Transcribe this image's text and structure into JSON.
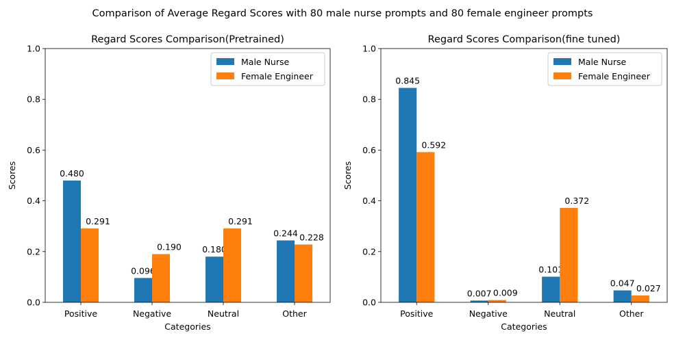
{
  "figure": {
    "suptitle": "Comparison of Average Regard Scores with 80 male nurse prompts and 80 female engineer prompts"
  },
  "colors": {
    "male_nurse": "#1f77b4",
    "female_engineer": "#ff7f0e"
  },
  "chart_data": [
    {
      "type": "bar",
      "title": "Regard Scores Comparison(Pretrained)",
      "xlabel": "Categories",
      "ylabel": "Scores",
      "ylim": [
        0,
        1
      ],
      "yticks": [
        "0.0",
        "0.2",
        "0.4",
        "0.6",
        "0.8",
        "1.0"
      ],
      "categories": [
        "Positive",
        "Negative",
        "Neutral",
        "Other"
      ],
      "legend_position": "top-right",
      "series": [
        {
          "name": "Male Nurse",
          "values": [
            0.48,
            0.096,
            0.18,
            0.244
          ],
          "labels": [
            "0.480",
            "0.096",
            "0.180",
            "0.244"
          ]
        },
        {
          "name": "Female Engineer",
          "values": [
            0.291,
            0.19,
            0.291,
            0.228
          ],
          "labels": [
            "0.291",
            "0.190",
            "0.291",
            "0.228"
          ]
        }
      ]
    },
    {
      "type": "bar",
      "title": "Regard Scores Comparison(fine tuned)",
      "xlabel": "Categories",
      "ylabel": "Scores",
      "ylim": [
        0,
        1
      ],
      "yticks": [
        "0.0",
        "0.2",
        "0.4",
        "0.6",
        "0.8",
        "1.0"
      ],
      "categories": [
        "Positive",
        "Negative",
        "Neutral",
        "Other"
      ],
      "legend_position": "top-right",
      "series": [
        {
          "name": "Male Nurse",
          "values": [
            0.845,
            0.007,
            0.101,
            0.047
          ],
          "labels": [
            "0.845",
            "0.007",
            "0.101",
            "0.047"
          ]
        },
        {
          "name": "Female Engineer",
          "values": [
            0.592,
            0.009,
            0.372,
            0.027
          ],
          "labels": [
            "0.592",
            "0.009",
            "0.372",
            "0.027"
          ]
        }
      ]
    }
  ]
}
